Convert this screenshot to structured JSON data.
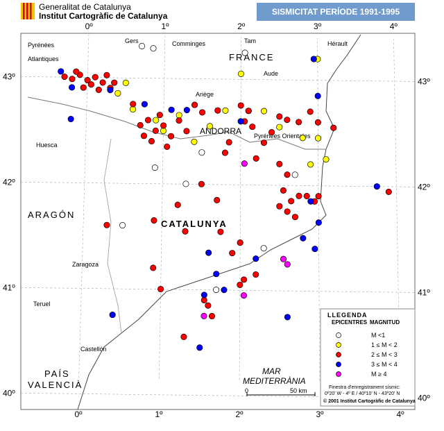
{
  "header": {
    "agency_line1": "Generalitat de Catalunya",
    "agency_line2": "Institut Cartogràfic de Catalunya",
    "title": "SISMICITAT PERÍODE 1991-1995"
  },
  "map": {
    "lon_ticks": [
      {
        "value": 0,
        "label": "0º"
      },
      {
        "value": 1,
        "label": "1º"
      },
      {
        "value": 2,
        "label": "2º"
      },
      {
        "value": 3,
        "label": "3º"
      },
      {
        "value": 4,
        "label": "4º"
      }
    ],
    "lat_ticks": [
      {
        "value": 43,
        "label": "43º"
      },
      {
        "value": 42,
        "label": "42º"
      },
      {
        "value": 41,
        "label": "41º"
      },
      {
        "value": 40,
        "label": "40º"
      }
    ],
    "places": [
      "Pyrénées",
      "Atlantiques",
      "Gers",
      "Comminges",
      "Tam",
      "Hérault",
      "FRANCE",
      "Aude",
      "Ariège",
      "ANDORRA",
      "Pyrénées Orientales",
      "Huesca",
      "ARAGÓN",
      "CATALUNYA",
      "Zaragoza",
      "Teruel",
      "Castellón",
      "PAÍS",
      "VALENCIÀ",
      "MAR",
      "MEDITERRÀNIA"
    ],
    "classes": [
      {
        "label": "M <1",
        "color": "#ffffff",
        "points": [
          [
            0.7,
            43.3
          ],
          [
            0.85,
            43.28
          ],
          [
            2.05,
            43.25
          ],
          [
            1.5,
            42.3
          ],
          [
            2.7,
            42.1
          ],
          [
            1.3,
            42.0
          ],
          [
            0.5,
            41.6
          ],
          [
            1.7,
            41.0
          ],
          [
            2.3,
            41.4
          ],
          [
            0.9,
            42.15
          ]
        ]
      },
      {
        "label": "1 ≤ M < 2",
        "color": "#ffff00",
        "points": [
          [
            0.4,
            42.85
          ],
          [
            0.6,
            42.7
          ],
          [
            0.9,
            42.6
          ],
          [
            1.2,
            42.65
          ],
          [
            1.4,
            42.4
          ],
          [
            1.8,
            42.7
          ],
          [
            2.1,
            42.7
          ],
          [
            2.3,
            42.7
          ],
          [
            2.5,
            42.55
          ],
          [
            2.8,
            42.45
          ],
          [
            3.0,
            42.45
          ],
          [
            3.1,
            42.25
          ],
          [
            2.9,
            42.2
          ],
          [
            1.0,
            42.5
          ],
          [
            2.0,
            43.05
          ],
          [
            3.0,
            43.2
          ],
          [
            1.6,
            42.55
          ],
          [
            0.5,
            42.95
          ]
        ]
      },
      {
        "label": "2 ≤ M < 3",
        "color": "#ff0000",
        "points": [
          [
            -0.3,
            43.0
          ],
          [
            -0.2,
            42.98
          ],
          [
            -0.1,
            43.02
          ],
          [
            0,
            42.97
          ],
          [
            0.1,
            43.0
          ],
          [
            0.2,
            42.95
          ],
          [
            0.3,
            42.9
          ],
          [
            0.15,
            42.88
          ],
          [
            -0.05,
            42.9
          ],
          [
            0.25,
            43.02
          ],
          [
            0.05,
            42.93
          ],
          [
            -0.15,
            43.05
          ],
          [
            0.35,
            42.95
          ],
          [
            0.6,
            42.75
          ],
          [
            0.8,
            42.6
          ],
          [
            0.9,
            42.5
          ],
          [
            1.0,
            42.55
          ],
          [
            1.1,
            42.45
          ],
          [
            0.85,
            42.4
          ],
          [
            0.7,
            42.55
          ],
          [
            1.2,
            42.6
          ],
          [
            1.3,
            42.5
          ],
          [
            0.95,
            42.65
          ],
          [
            1.05,
            42.35
          ],
          [
            0.75,
            42.45
          ],
          [
            1.4,
            42.75
          ],
          [
            1.5,
            42.68
          ],
          [
            1.7,
            42.7
          ],
          [
            2.0,
            42.75
          ],
          [
            2.1,
            42.7
          ],
          [
            2.05,
            42.6
          ],
          [
            2.15,
            42.55
          ],
          [
            2.3,
            42.4
          ],
          [
            2.4,
            42.5
          ],
          [
            2.5,
            42.65
          ],
          [
            2.6,
            42.62
          ],
          [
            2.75,
            42.6
          ],
          [
            2.9,
            42.7
          ],
          [
            3.0,
            42.6
          ],
          [
            3.2,
            42.55
          ],
          [
            1.8,
            42.3
          ],
          [
            1.85,
            42.4
          ],
          [
            2.2,
            42.25
          ],
          [
            2.5,
            42.2
          ],
          [
            2.6,
            42.1
          ],
          [
            2.55,
            41.95
          ],
          [
            2.65,
            41.85
          ],
          [
            2.75,
            41.9
          ],
          [
            2.85,
            41.9
          ],
          [
            2.95,
            41.85
          ],
          [
            2.6,
            41.75
          ],
          [
            2.5,
            41.8
          ],
          [
            2.7,
            41.7
          ],
          [
            3.0,
            41.9
          ],
          [
            1.7,
            41.85
          ],
          [
            1.5,
            42.0
          ],
          [
            1.2,
            41.8
          ],
          [
            0.9,
            41.65
          ],
          [
            1.3,
            41.55
          ],
          [
            0.3,
            41.6
          ],
          [
            1.75,
            41.55
          ],
          [
            2.0,
            41.45
          ],
          [
            2.2,
            41.15
          ],
          [
            1.9,
            41.35
          ],
          [
            2.05,
            41.1
          ],
          [
            2.0,
            41.05
          ],
          [
            1.6,
            40.85
          ],
          [
            1.55,
            40.9
          ],
          [
            1.65,
            40.75
          ],
          [
            1.0,
            41.0
          ],
          [
            0.9,
            41.2
          ],
          [
            3.9,
            41.95
          ],
          [
            1.3,
            40.55
          ]
        ]
      },
      {
        "label": "3 ≤ M < 4",
        "color": "#0000ff",
        "points": [
          [
            -0.35,
            43.05
          ],
          [
            -0.2,
            42.9
          ],
          [
            0.3,
            42.88
          ],
          [
            0.75,
            42.75
          ],
          [
            1.3,
            42.7
          ],
          [
            2.0,
            42.6
          ],
          [
            3.0,
            42.85
          ],
          [
            -0.2,
            42.6
          ],
          [
            2.9,
            41.85
          ],
          [
            3.0,
            41.65
          ],
          [
            2.95,
            41.4
          ],
          [
            1.6,
            41.35
          ],
          [
            1.7,
            41.15
          ],
          [
            1.8,
            41.0
          ],
          [
            1.55,
            40.95
          ],
          [
            1.5,
            40.45
          ],
          [
            0.4,
            40.75
          ],
          [
            2.6,
            40.75
          ],
          [
            2.8,
            41.5
          ],
          [
            3.75,
            42.0
          ],
          [
            2.2,
            41.3
          ],
          [
            1.1,
            42.7
          ],
          [
            2.95,
            43.2
          ]
        ]
      },
      {
        "label": "M ≥  4",
        "color": "#ff00ff",
        "points": [
          [
            2.05,
            42.2
          ],
          [
            2.55,
            41.3
          ],
          [
            2.6,
            41.25
          ],
          [
            2.05,
            40.95
          ],
          [
            1.55,
            40.75
          ]
        ]
      }
    ]
  },
  "legend": {
    "title": "LLEGENDA",
    "col1": "EPICENTRES",
    "col2": "MAGNITUD",
    "window_title": "Finestra d'enregistrament sísmic:",
    "window": "0º20' W - 4º E / 40º10' N - 43º20' N",
    "copyright": "© 2001 Institut Cartogràfic de Catalunya"
  },
  "scale": {
    "start": "0",
    "end": "50 km"
  }
}
